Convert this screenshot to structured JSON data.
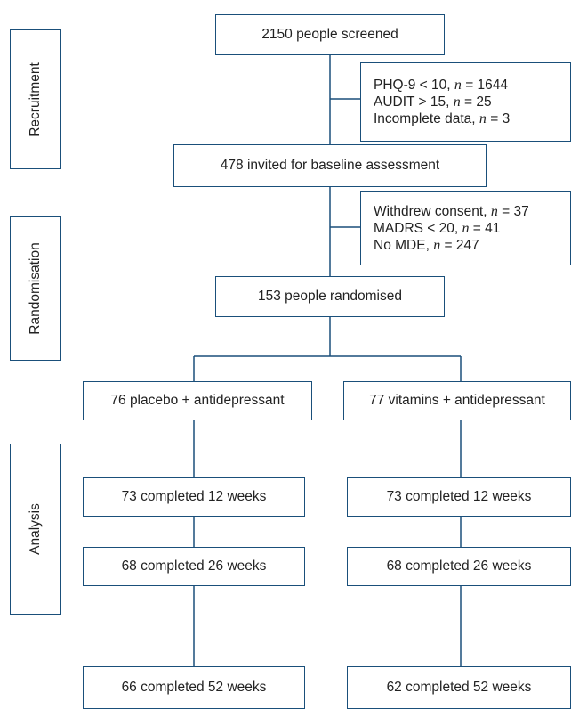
{
  "stages": {
    "recruitment": "Recruitment",
    "randomisation": "Randomisation",
    "analysis": "Analysis"
  },
  "boxes": {
    "screened": "2150 people screened",
    "invited": "478 invited for baseline assessment",
    "randomised": "153 people randomised",
    "placebo_arm": "76 placebo + antidepressant",
    "vitamin_arm": "77 vitamins + antidepressant",
    "placebo_12": "73 completed 12 weeks",
    "vitamin_12": "73 completed 12 weeks",
    "placebo_26": "68 completed 26 weeks",
    "vitamin_26": "68 completed 26 weeks",
    "placebo_52": "66 completed 52 weeks",
    "vitamin_52": "62 completed 52 weeks"
  },
  "exclusions_1": [
    {
      "label": "PHQ-9 < 10, ",
      "n": "n",
      "value": " = 1644"
    },
    {
      "label": "AUDIT > 15, ",
      "n": "n",
      "value": " = 25"
    },
    {
      "label": "Incomplete data, ",
      "n": "n",
      "value": " = 3"
    }
  ],
  "exclusions_2": [
    {
      "label": "Withdrew consent, ",
      "n": "n",
      "value": " = 37"
    },
    {
      "label": "MADRS < 20, ",
      "n": "n",
      "value": " = 41"
    },
    {
      "label": "No MDE, ",
      "n": "n",
      "value": " = 247"
    }
  ]
}
